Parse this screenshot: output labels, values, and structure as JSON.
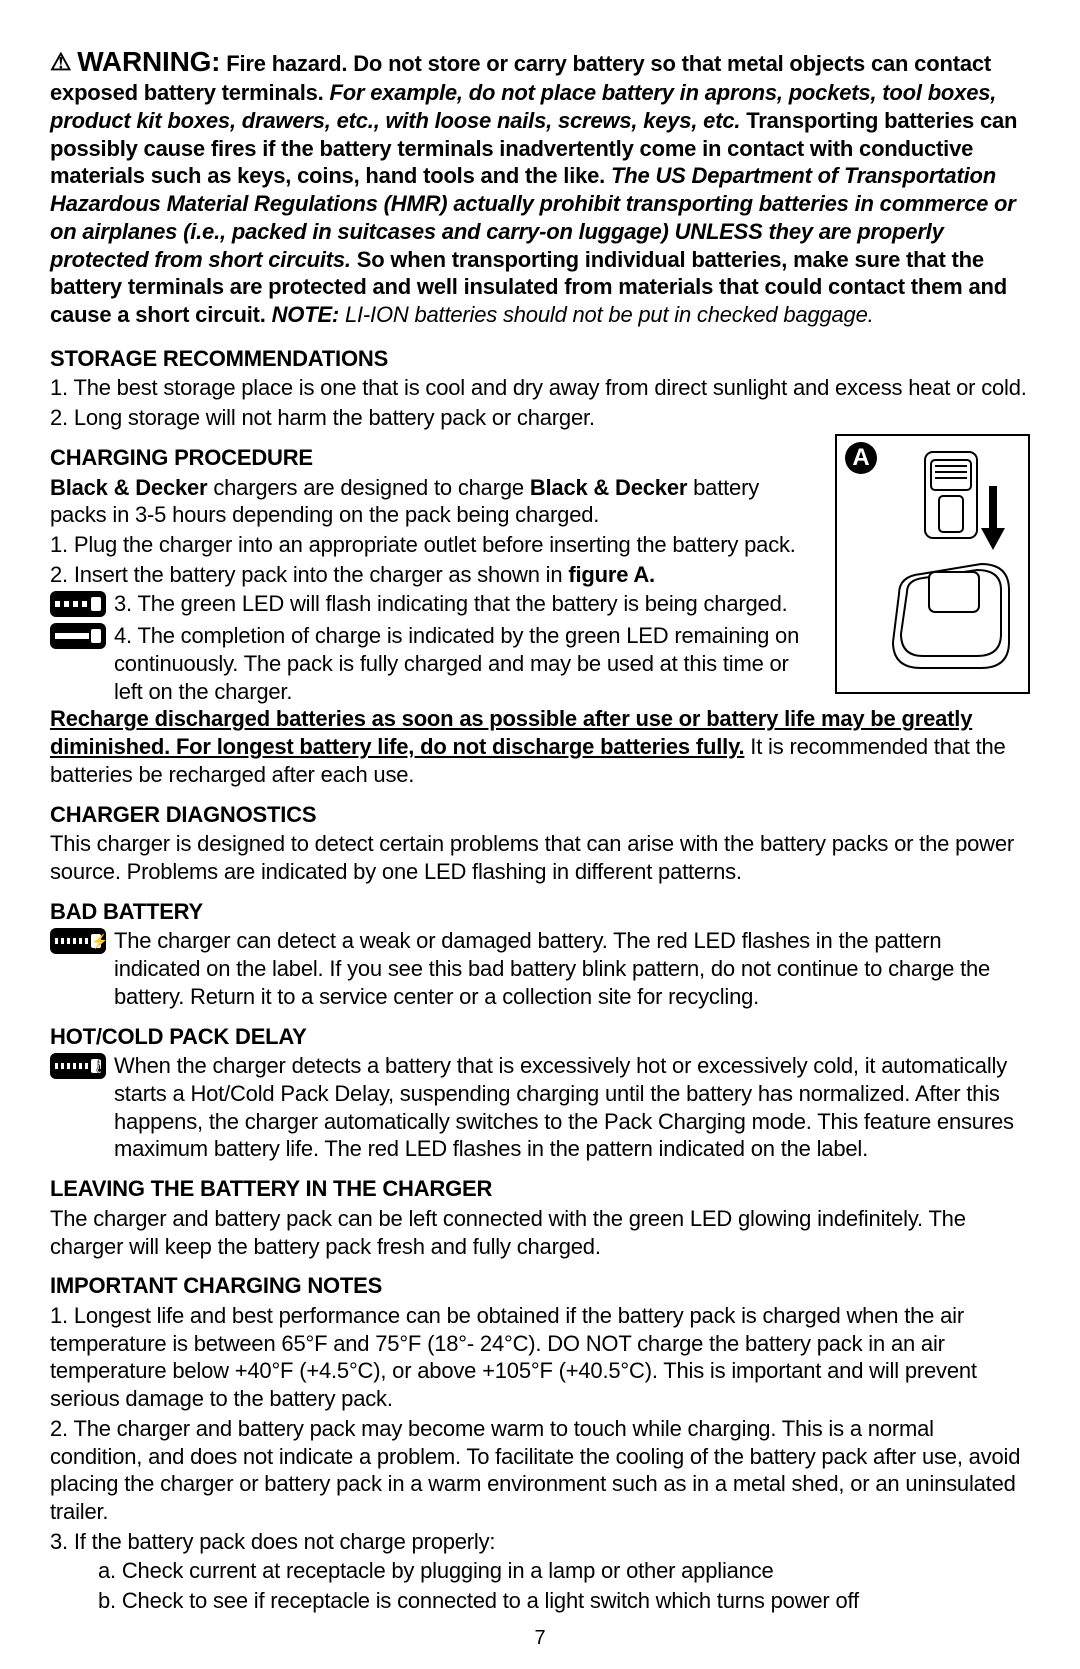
{
  "warning": {
    "icon": "⚠",
    "title": "WARNING:",
    "body_html": " Fire hazard. Do not store or carry battery so that metal objects can contact exposed battery terminals. <span class=\"italic\">For example, do not place battery in aprons, pockets, tool boxes, product kit boxes, drawers, etc., with loose nails, screws, keys, etc.</span> Transporting batteries can possibly cause fires if the battery terminals inadvertently come in contact with conductive materials such as keys, coins, hand tools and the like. <span class=\"italic\">The US Department of Transportation Hazardous Material Regulations (HMR) actually prohibit transporting batteries in commerce or on airplanes (i.e., packed in suitcases and carry-on luggage) UNLESS they are properly protected from short circuits.</span> So when transporting individual batteries, make sure that the battery terminals are protected and well insulated from materials that could contact them and cause a short circuit.",
    "note_label": "NOTE:",
    "note_text": "LI-ION batteries should not be put in checked baggage."
  },
  "storage": {
    "heading": "STORAGE RECOMMENDATIONS",
    "item1": "1. The best storage place is one that is cool and dry away from direct sunlight and excess heat or cold.",
    "item2": "2. Long storage will not harm the battery pack or charger."
  },
  "figure": {
    "label": "A"
  },
  "charging": {
    "heading": "CHARGING PROCEDURE",
    "intro_html": "<span class=\"bold\">Black & Decker</span> chargers are designed to charge <span class=\"bold\">Black & Decker</span> battery packs in 3-5 hours depending on the pack being charged.",
    "item1": "1. Plug the charger into an appropriate outlet before inserting the battery pack.",
    "item2_html": "2. Insert the battery pack into the charger as shown in <span class=\"bold\">figure A.</span>",
    "item3": "3. The green LED will flash indicating that the battery is being charged.",
    "item4": "4. The completion of charge is indicated by the green LED remaining on continuously. The pack is fully charged and may be used at this time or left on the charger.",
    "recharge_underline": "Recharge discharged batteries as soon as possible after use or battery life may be greatly diminished. For longest battery life, do not discharge batteries fully.",
    "recharge_tail": " It is recommended that the batteries be recharged after each use."
  },
  "diagnostics": {
    "heading": "CHARGER DIAGNOSTICS",
    "text": "This charger is designed to detect certain problems that can arise with the battery packs or the power source. Problems are indicated by one LED flashing in different patterns."
  },
  "bad_battery": {
    "heading": "BAD BATTERY",
    "text": "The charger can detect a weak or damaged battery. The red LED flashes in the pattern indicated on the label. If you see this bad battery blink pattern, do not continue to charge the battery. Return it to a service center or a collection site for recycling."
  },
  "hot_cold": {
    "heading": "HOT/COLD PACK DELAY",
    "text": "When the charger detects a battery that is excessively hot or excessively cold, it automatically starts a Hot/Cold Pack Delay, suspending charging until the battery has normalized. After this happens, the charger automatically switches to the Pack Charging mode. This feature ensures maximum battery life. The red LED flashes in the pattern indicated on the label."
  },
  "leaving": {
    "heading": "LEAVING THE BATTERY IN THE CHARGER",
    "text": "The charger and battery pack can be left connected with the green LED glowing indefinitely. The charger will keep the battery pack fresh and fully charged."
  },
  "notes": {
    "heading": "IMPORTANT CHARGING NOTES",
    "item1": "1. Longest life and best performance can be obtained if the battery pack is charged when the air temperature is between 65°F and 75°F (18°- 24°C). DO NOT charge the battery pack in an air temperature below +40°F (+4.5°C), or above +105°F (+40.5°C). This is important and will prevent serious damage to the battery pack.",
    "item2": "2. The charger and battery pack may become warm to touch while charging. This is a normal condition, and does not indicate a problem. To facilitate the cooling of the battery pack after use, avoid placing the charger or battery pack in a warm environment such as in a metal shed, or an uninsulated trailer.",
    "item3": "3. If the battery pack does not charge properly:",
    "item3a": "a. Check current at receptacle by plugging in a lamp or other appliance",
    "item3b": "b. Check to see if receptacle is connected to a light switch which turns power off"
  },
  "page_number": "7"
}
